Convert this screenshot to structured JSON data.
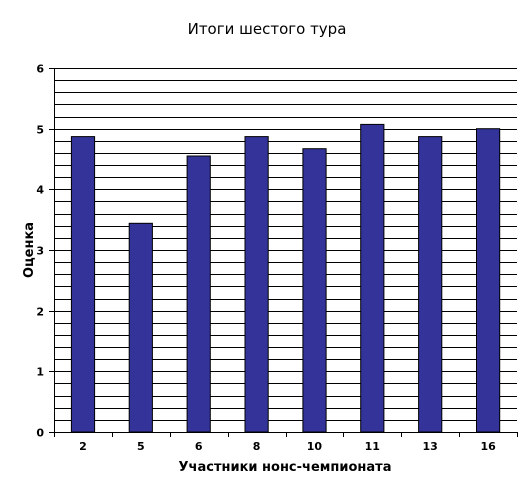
{
  "chart_data": {
    "type": "bar",
    "title": "Итоги шестого тура",
    "xlabel": "Участники нонс-чемпионата",
    "ylabel": "Оценка",
    "categories": [
      "2",
      "5",
      "6",
      "8",
      "10",
      "11",
      "13",
      "16"
    ],
    "values": [
      4.87,
      3.44,
      4.55,
      4.87,
      4.67,
      5.07,
      4.87,
      5.0
    ],
    "ylim": [
      0,
      6
    ],
    "yticks": [
      "0",
      "1",
      "2",
      "3",
      "4",
      "5",
      "6"
    ],
    "minor_grid_step": 0.2,
    "grid": true,
    "legend": "none",
    "colors": {
      "bar_fill": "#333399",
      "bar_stroke": "#000000",
      "grid": "#000000",
      "plot_background": "#ffffff"
    }
  }
}
